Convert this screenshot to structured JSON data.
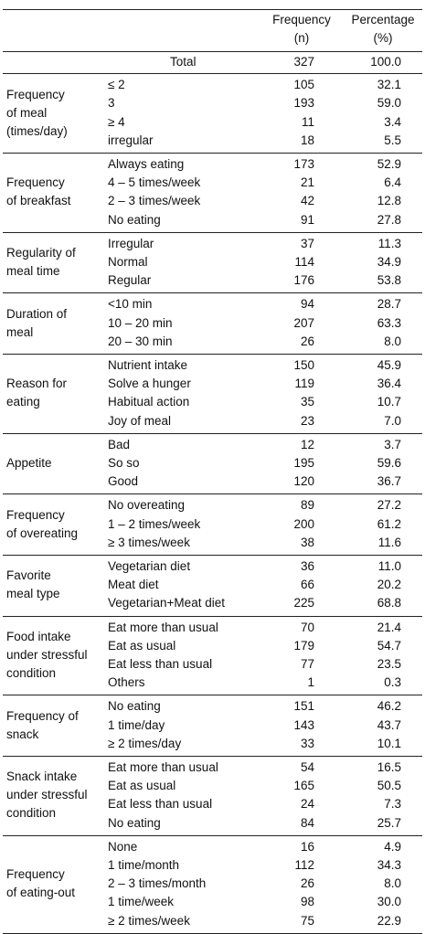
{
  "header": {
    "frequency_lines": [
      "Frequency",
      "(n)"
    ],
    "percentage_lines": [
      "Percentage",
      "(%)"
    ]
  },
  "total": {
    "label": "Total",
    "n": "327",
    "pct": "100.0"
  },
  "groups": [
    {
      "label": [
        "Frequency",
        "of meal",
        "(times/day)"
      ],
      "rows": [
        {
          "cat": "≤ 2",
          "n": "105",
          "pct": "32.1"
        },
        {
          "cat": "3",
          "n": "193",
          "pct": "59.0"
        },
        {
          "cat": "≥ 4",
          "n": "11",
          "pct": "3.4"
        },
        {
          "cat": "irregular",
          "n": "18",
          "pct": "5.5"
        }
      ]
    },
    {
      "label": [
        "Frequency",
        "of breakfast"
      ],
      "rows": [
        {
          "cat": "Always eating",
          "n": "173",
          "pct": "52.9"
        },
        {
          "cat": "4 – 5 times/week",
          "n": "21",
          "pct": "6.4"
        },
        {
          "cat": "2 – 3 times/week",
          "n": "42",
          "pct": "12.8"
        },
        {
          "cat": "No eating",
          "n": "91",
          "pct": "27.8"
        }
      ]
    },
    {
      "label": [
        "Regularity of",
        "meal time"
      ],
      "rows": [
        {
          "cat": "Irregular",
          "n": "37",
          "pct": "11.3"
        },
        {
          "cat": "Normal",
          "n": "114",
          "pct": "34.9"
        },
        {
          "cat": "Regular",
          "n": "176",
          "pct": "53.8"
        }
      ]
    },
    {
      "label": [
        "Duration of",
        "meal"
      ],
      "rows": [
        {
          "cat": "<10 min",
          "n": "94",
          "pct": "28.7"
        },
        {
          "cat": "10 – 20 min",
          "n": "207",
          "pct": "63.3"
        },
        {
          "cat": "20 – 30 min",
          "n": "26",
          "pct": "8.0"
        }
      ]
    },
    {
      "label": [
        "Reason for",
        "eating"
      ],
      "rows": [
        {
          "cat": "Nutrient intake",
          "n": "150",
          "pct": "45.9"
        },
        {
          "cat": "Solve a hunger",
          "n": "119",
          "pct": "36.4"
        },
        {
          "cat": "Habitual action",
          "n": "35",
          "pct": "10.7"
        },
        {
          "cat": "Joy of meal",
          "n": "23",
          "pct": "7.0"
        }
      ]
    },
    {
      "label": [
        "Appetite"
      ],
      "rows": [
        {
          "cat": "Bad",
          "n": "12",
          "pct": "3.7"
        },
        {
          "cat": "So so",
          "n": "195",
          "pct": "59.6"
        },
        {
          "cat": "Good",
          "n": "120",
          "pct": "36.7"
        }
      ]
    },
    {
      "label": [
        "Frequency",
        "of overeating"
      ],
      "rows": [
        {
          "cat": "No overeating",
          "n": "89",
          "pct": "27.2"
        },
        {
          "cat": "1 – 2 times/week",
          "n": "200",
          "pct": "61.2"
        },
        {
          "cat": "≥ 3 times/week",
          "n": "38",
          "pct": "11.6"
        }
      ]
    },
    {
      "label": [
        "Favorite",
        "meal type"
      ],
      "rows": [
        {
          "cat": "Vegetarian diet",
          "n": "36",
          "pct": "11.0"
        },
        {
          "cat": "Meat diet",
          "n": "66",
          "pct": "20.2"
        },
        {
          "cat": "Vegetarian+Meat diet",
          "n": "225",
          "pct": "68.8"
        }
      ]
    },
    {
      "label": [
        "Food intake",
        "under stressful",
        "condition"
      ],
      "rows": [
        {
          "cat": "Eat more than usual",
          "n": "70",
          "pct": "21.4"
        },
        {
          "cat": "Eat as usual",
          "n": "179",
          "pct": "54.7"
        },
        {
          "cat": "Eat less than usual",
          "n": "77",
          "pct": "23.5"
        },
        {
          "cat": "Others",
          "n": "1",
          "pct": "0.3"
        }
      ]
    },
    {
      "label": [
        "Frequency of",
        "snack"
      ],
      "rows": [
        {
          "cat": "No eating",
          "n": "151",
          "pct": "46.2"
        },
        {
          "cat": "1 time/day",
          "n": "143",
          "pct": "43.7"
        },
        {
          "cat": "≥ 2 times/day",
          "n": "33",
          "pct": "10.1"
        }
      ]
    },
    {
      "label": [
        "Snack intake",
        "under stressful",
        "condition"
      ],
      "rows": [
        {
          "cat": "Eat more than usual",
          "n": "54",
          "pct": "16.5"
        },
        {
          "cat": "Eat as usual",
          "n": "165",
          "pct": "50.5"
        },
        {
          "cat": "Eat less than usual",
          "n": "24",
          "pct": "7.3"
        },
        {
          "cat": "No eating",
          "n": "84",
          "pct": "25.7"
        }
      ]
    },
    {
      "label": [
        "Frequency",
        "of eating-out"
      ],
      "rows": [
        {
          "cat": "None",
          "n": "16",
          "pct": "4.9"
        },
        {
          "cat": "1 time/month",
          "n": "112",
          "pct": "34.3"
        },
        {
          "cat": "2 – 3 times/month",
          "n": "26",
          "pct": "8.0"
        },
        {
          "cat": "1 time/week",
          "n": "98",
          "pct": "30.0"
        },
        {
          "cat": "≥ 2 times/week",
          "n": "75",
          "pct": "22.9"
        }
      ]
    }
  ]
}
